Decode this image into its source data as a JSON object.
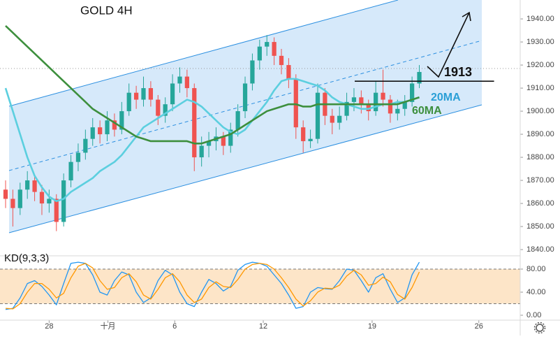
{
  "chart_data": [
    {
      "type": "candlestick",
      "title": "GOLD 4H",
      "xlim": [
        -0.77,
        70.9
      ],
      "xticks": [
        {
          "value": 6.0,
          "label": "28"
        },
        {
          "value": 14.1,
          "label": "十月"
        },
        {
          "value": 23.3,
          "label": "6"
        },
        {
          "value": 35.5,
          "label": "12"
        },
        {
          "value": 50.5,
          "label": "19"
        },
        {
          "value": 65.2,
          "label": "26"
        }
      ],
      "ylim": [
        1837.6,
        1948.2
      ],
      "yticks": [
        {
          "value": 1840,
          "label": "1840.00"
        },
        {
          "value": 1850,
          "label": "1850.00"
        },
        {
          "value": 1860,
          "label": "1860.00"
        },
        {
          "value": 1870,
          "label": "1870.00"
        },
        {
          "value": 1880,
          "label": "1880.00"
        },
        {
          "value": 1890,
          "label": "1890.00"
        },
        {
          "value": 1900,
          "label": "1900.00"
        },
        {
          "value": 1910,
          "label": "1910.00"
        },
        {
          "value": 1920,
          "label": "1920.00"
        },
        {
          "value": 1930,
          "label": "1930.00"
        },
        {
          "value": 1940,
          "label": "1940.00"
        }
      ],
      "up_color": "#26a69a",
      "down_color": "#ef5350",
      "open": [
        1866,
        1862,
        1858,
        1866,
        1870,
        1865,
        1860,
        1862,
        1852,
        1870,
        1878,
        1882,
        1888,
        1893,
        1890,
        1896,
        1892,
        1900,
        1908,
        1905,
        1910,
        1905,
        1898,
        1903,
        1912,
        1915,
        1910,
        1880,
        1885,
        1887,
        1889,
        1885,
        1892,
        1900,
        1912,
        1922,
        1928,
        1930,
        1924,
        1920,
        1914,
        1893,
        1887,
        1888,
        1908,
        1898,
        1895,
        1898,
        1904,
        1906,
        1903,
        1900,
        1908,
        1905,
        1899,
        1901,
        1904,
        1912
      ],
      "high": [
        1870,
        1866,
        1869,
        1874,
        1872,
        1868,
        1866,
        1864,
        1873,
        1881,
        1886,
        1892,
        1897,
        1896,
        1900,
        1899,
        1904,
        1912,
        1911,
        1915,
        1913,
        1907,
        1906,
        1916,
        1919,
        1918,
        1912,
        1889,
        1891,
        1893,
        1891,
        1895,
        1903,
        1915,
        1925,
        1931,
        1933,
        1932,
        1927,
        1923,
        1916,
        1896,
        1892,
        1912,
        1910,
        1901,
        1902,
        1908,
        1910,
        1909,
        1905,
        1913,
        1918,
        1907,
        1905,
        1907,
        1915,
        1920
      ],
      "low": [
        1858,
        1850,
        1855,
        1862,
        1861,
        1855,
        1856,
        1848,
        1850,
        1867,
        1874,
        1879,
        1885,
        1886,
        1887,
        1889,
        1890,
        1898,
        1901,
        1902,
        1902,
        1894,
        1895,
        1900,
        1908,
        1906,
        1874,
        1876,
        1880,
        1883,
        1881,
        1882,
        1889,
        1897,
        1909,
        1918,
        1924,
        1920,
        1916,
        1910,
        1888,
        1882,
        1884,
        1886,
        1894,
        1890,
        1892,
        1896,
        1900,
        1899,
        1896,
        1898,
        1902,
        1895,
        1896,
        1898,
        1902,
        1910
      ],
      "close": [
        1862,
        1858,
        1866,
        1870,
        1865,
        1860,
        1862,
        1852,
        1870,
        1878,
        1882,
        1888,
        1893,
        1890,
        1896,
        1892,
        1900,
        1908,
        1905,
        1910,
        1905,
        1898,
        1903,
        1912,
        1915,
        1910,
        1880,
        1885,
        1887,
        1889,
        1885,
        1892,
        1900,
        1912,
        1922,
        1928,
        1930,
        1924,
        1920,
        1914,
        1893,
        1887,
        1888,
        1908,
        1898,
        1895,
        1898,
        1904,
        1906,
        1903,
        1900,
        1908,
        1905,
        1899,
        1901,
        1904,
        1912,
        1917
      ],
      "series": [
        {
          "name": "20MA",
          "color": "#5ccfdf",
          "values": [
            1910,
            1900,
            1890,
            1880,
            1872,
            1867,
            1863,
            1861,
            1862,
            1865,
            1867,
            1869,
            1871,
            1874,
            1876,
            1878,
            1881,
            1885,
            1889,
            1893,
            1895,
            1897,
            1899,
            1901,
            1903,
            1905,
            1904,
            1902,
            1899,
            1896,
            1893,
            1891,
            1890,
            1892,
            1896,
            1900,
            1904,
            1909,
            1913,
            1914,
            1914,
            1913,
            1912,
            1911,
            1909,
            1906,
            1904,
            1903,
            1902,
            1901,
            1901,
            1902,
            1903,
            1903,
            1904,
            1904,
            1905,
            1906
          ]
        },
        {
          "name": "60MA",
          "color": "#3d8f3d",
          "values": [
            1937,
            1934,
            1931,
            1928,
            1925,
            1922,
            1919,
            1916,
            1913,
            1910,
            1907,
            1904,
            1901,
            1899,
            1897,
            1895,
            1893,
            1891,
            1889,
            1888,
            1887,
            1887,
            1887,
            1887,
            1887,
            1887,
            1886,
            1886,
            1887,
            1888,
            1889,
            1890,
            1892,
            1894,
            1896,
            1898,
            1900,
            1901,
            1902,
            1903,
            1903,
            1902,
            1902,
            1903,
            1903,
            1903,
            1903,
            1903,
            1903,
            1903,
            1903,
            1903,
            1903,
            1903,
            1903,
            1904,
            1905,
            1906
          ]
        }
      ],
      "level_line": {
        "value": 1913
      }
    },
    {
      "type": "line",
      "title": "KD(9,3,3)",
      "ylim": [
        -8.5,
        100.6
      ],
      "yticks": [
        {
          "value": 0,
          "label": "0.00"
        },
        {
          "value": 40,
          "label": "40.00"
        },
        {
          "value": 80,
          "label": "80.00"
        }
      ],
      "bands": [
        20,
        80
      ],
      "band_color": "#fde5c8",
      "series": [
        {
          "color": "#2196f3",
          "values": [
            10,
            12,
            30,
            55,
            60,
            50,
            35,
            18,
            55,
            90,
            92,
            90,
            70,
            40,
            35,
            60,
            75,
            70,
            40,
            22,
            30,
            60,
            78,
            70,
            40,
            20,
            15,
            40,
            62,
            55,
            42,
            50,
            78,
            88,
            92,
            90,
            85,
            70,
            55,
            35,
            12,
            15,
            40,
            48,
            46,
            45,
            60,
            80,
            78,
            60,
            40,
            65,
            72,
            45,
            22,
            30,
            70,
            92
          ]
        },
        {
          "color": "#ff9800",
          "values": [
            12,
            11,
            20,
            40,
            55,
            55,
            45,
            30,
            38,
            65,
            85,
            90,
            82,
            60,
            45,
            48,
            65,
            72,
            58,
            35,
            28,
            45,
            65,
            72,
            58,
            35,
            22,
            28,
            48,
            58,
            50,
            48,
            62,
            80,
            88,
            90,
            88,
            80,
            65,
            48,
            28,
            16,
            25,
            40,
            47,
            46,
            52,
            68,
            78,
            70,
            52,
            55,
            66,
            58,
            36,
            28,
            48,
            75
          ]
        }
      ]
    }
  ]
}
